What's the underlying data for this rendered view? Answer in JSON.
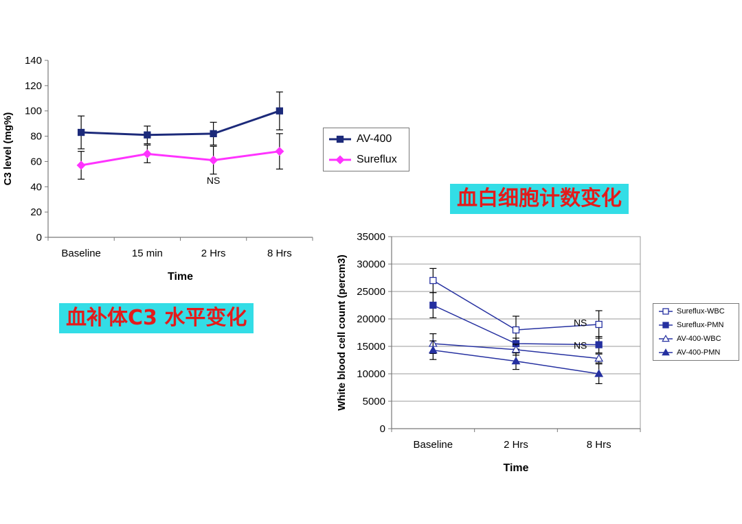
{
  "banners": {
    "c3": "血补体C3 水平变化",
    "wbc": "血白细胞计数变化"
  },
  "chart_data": [
    {
      "type": "line",
      "categories": [
        "Baseline",
        "15 min",
        "2 Hrs",
        "8 Hrs"
      ],
      "xlabel": "Time",
      "ylabel": "C3 level (mg%)",
      "ylim": [
        0,
        140
      ],
      "yticks": [
        0,
        20,
        40,
        60,
        80,
        100,
        120,
        140
      ],
      "grid": false,
      "legend_position": "right",
      "series": [
        {
          "name": "AV-400",
          "color": "#1c2a7a",
          "marker": "square-filled",
          "values": [
            83,
            81,
            82,
            100
          ],
          "error": [
            13,
            7,
            9,
            15
          ]
        },
        {
          "name": "Sureflux",
          "color": "#ff33ff",
          "marker": "diamond-filled",
          "values": [
            57,
            66,
            61,
            68
          ],
          "error": [
            11,
            7,
            11,
            14
          ]
        }
      ],
      "annotations": [
        {
          "text": "NS",
          "x": "2 Hrs",
          "y": 45
        }
      ]
    },
    {
      "type": "line",
      "categories": [
        "Baseline",
        "2 Hrs",
        "8 Hrs"
      ],
      "xlabel": "Time",
      "ylabel": "White blood cell count (percm3)",
      "ylim": [
        0,
        35000
      ],
      "yticks": [
        0,
        5000,
        10000,
        15000,
        20000,
        25000,
        30000,
        35000
      ],
      "grid": true,
      "legend_position": "right",
      "series": [
        {
          "name": "Sureflux-WBC",
          "color": "#2530a0",
          "marker": "square-open",
          "values": [
            27000,
            18000,
            19000
          ],
          "error": [
            2200,
            2500,
            2500
          ]
        },
        {
          "name": "Sureflux-PMN",
          "color": "#2530a0",
          "marker": "square-filled",
          "values": [
            22500,
            15500,
            15300
          ],
          "error": [
            2300,
            1000,
            1500
          ]
        },
        {
          "name": "AV-400-WBC",
          "color": "#2530a0",
          "marker": "triangle-open",
          "values": [
            15500,
            14400,
            12800
          ],
          "error": [
            1800,
            1000,
            800
          ]
        },
        {
          "name": "AV-400-PMN",
          "color": "#2530a0",
          "marker": "triangle-filled",
          "values": [
            14300,
            12300,
            10000
          ],
          "error": [
            1700,
            1500,
            1800
          ]
        }
      ],
      "annotations": [
        {
          "text": "NS",
          "x": "8 Hrs",
          "y": 19300
        },
        {
          "text": "NS",
          "x": "8 Hrs",
          "y": 15200
        }
      ]
    }
  ]
}
